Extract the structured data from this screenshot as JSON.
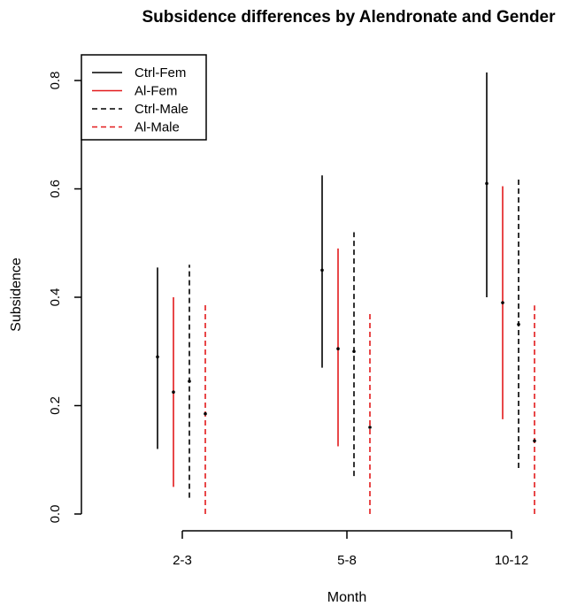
{
  "chart_data": {
    "type": "errorbar",
    "title": "Subsidence differences by Alendronate and Gender",
    "xlabel": "Month",
    "ylabel": "Subsidence",
    "categories": [
      "2-3",
      "5-8",
      "10-12"
    ],
    "ylim": [
      0.0,
      0.8
    ],
    "yticks": [
      "0.0",
      "0.2",
      "0.4",
      "0.6",
      "0.8"
    ],
    "legend_position": "top-left",
    "grid": false,
    "series": [
      {
        "name": "Ctrl-Fem",
        "color": "#000000",
        "linestyle": "solid",
        "points": [
          {
            "category": "2-3",
            "estimate": 0.29,
            "lower": 0.12,
            "upper": 0.455
          },
          {
            "category": "5-8",
            "estimate": 0.45,
            "lower": 0.27,
            "upper": 0.625
          },
          {
            "category": "10-12",
            "estimate": 0.61,
            "lower": 0.4,
            "upper": 0.815
          }
        ]
      },
      {
        "name": "Al-Fem",
        "color": "#e31a1c",
        "linestyle": "solid",
        "points": [
          {
            "category": "2-3",
            "estimate": 0.225,
            "lower": 0.05,
            "upper": 0.4
          },
          {
            "category": "5-8",
            "estimate": 0.305,
            "lower": 0.125,
            "upper": 0.49
          },
          {
            "category": "10-12",
            "estimate": 0.39,
            "lower": 0.175,
            "upper": 0.605
          }
        ]
      },
      {
        "name": "Ctrl-Male",
        "color": "#000000",
        "linestyle": "dashed",
        "points": [
          {
            "category": "2-3",
            "estimate": 0.245,
            "lower": 0.03,
            "upper": 0.46
          },
          {
            "category": "5-8",
            "estimate": 0.3,
            "lower": 0.07,
            "upper": 0.52
          },
          {
            "category": "10-12",
            "estimate": 0.35,
            "lower": 0.085,
            "upper": 0.62
          }
        ]
      },
      {
        "name": "Al-Male",
        "color": "#e31a1c",
        "linestyle": "dashed",
        "points": [
          {
            "category": "2-3",
            "estimate": 0.185,
            "lower": 0.0,
            "upper": 0.39
          },
          {
            "category": "5-8",
            "estimate": 0.16,
            "lower": 0.0,
            "upper": 0.37
          },
          {
            "category": "10-12",
            "estimate": 0.135,
            "lower": 0.0,
            "upper": 0.385
          }
        ]
      }
    ]
  }
}
